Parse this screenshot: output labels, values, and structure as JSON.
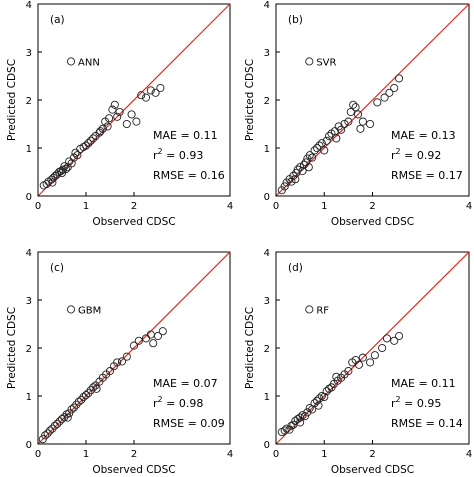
{
  "chart_data": [
    {
      "type": "scatter",
      "panel_label": "(a)",
      "model": "ANN",
      "xlabel": "Observed CDSC",
      "ylabel": "Predicted CDSC",
      "xlim": [
        0,
        4
      ],
      "ylim": [
        0,
        4
      ],
      "xticks": [
        "0",
        "1",
        "2",
        "4"
      ],
      "yticks": [
        "0",
        "1",
        "2",
        "3",
        "4"
      ],
      "reference_line": "1:1",
      "stats": {
        "mae": "MAE = 0.11",
        "r2_prefix": "r",
        "r2_value": " = 0.93",
        "rmse": "RMSE = 0.16"
      },
      "points": [
        [
          0.12,
          0.22
        ],
        [
          0.18,
          0.25
        ],
        [
          0.22,
          0.3
        ],
        [
          0.28,
          0.34
        ],
        [
          0.32,
          0.38
        ],
        [
          0.36,
          0.42
        ],
        [
          0.4,
          0.45
        ],
        [
          0.44,
          0.5
        ],
        [
          0.48,
          0.52
        ],
        [
          0.52,
          0.55
        ],
        [
          0.55,
          0.62
        ],
        [
          0.58,
          0.56
        ],
        [
          0.62,
          0.6
        ],
        [
          0.65,
          0.72
        ],
        [
          0.7,
          0.68
        ],
        [
          0.75,
          0.8
        ],
        [
          0.78,
          0.9
        ],
        [
          0.82,
          0.85
        ],
        [
          0.88,
          0.98
        ],
        [
          0.95,
          1.02
        ],
        [
          1.0,
          1.05
        ],
        [
          1.05,
          1.1
        ],
        [
          1.1,
          1.15
        ],
        [
          1.15,
          1.2
        ],
        [
          1.2,
          1.25
        ],
        [
          1.28,
          1.32
        ],
        [
          1.35,
          1.4
        ],
        [
          1.4,
          1.55
        ],
        [
          1.48,
          1.62
        ],
        [
          1.55,
          1.8
        ],
        [
          1.6,
          1.9
        ],
        [
          1.65,
          1.65
        ],
        [
          1.7,
          1.75
        ],
        [
          1.85,
          1.5
        ],
        [
          2.05,
          1.55
        ],
        [
          2.15,
          2.1
        ],
        [
          2.25,
          2.05
        ],
        [
          2.35,
          2.2
        ],
        [
          2.45,
          2.15
        ],
        [
          2.55,
          2.25
        ],
        [
          0.3,
          0.28
        ],
        [
          0.5,
          0.48
        ],
        [
          1.3,
          1.35
        ],
        [
          1.45,
          1.45
        ],
        [
          1.95,
          1.7
        ]
      ]
    },
    {
      "type": "scatter",
      "panel_label": "(b)",
      "model": "SVR",
      "xlabel": "Observed CDSC",
      "ylabel": "Predicted CDSC",
      "xlim": [
        0,
        4
      ],
      "ylim": [
        0,
        4
      ],
      "xticks": [
        "0",
        "1",
        "2",
        "4"
      ],
      "yticks": [
        "0",
        "1",
        "2",
        "3",
        "4"
      ],
      "reference_line": "1:1",
      "stats": {
        "mae": "MAE = 0.13",
        "r2_prefix": "r",
        "r2_value": " = 0.92",
        "rmse": "RMSE = 0.17"
      },
      "points": [
        [
          0.12,
          0.12
        ],
        [
          0.18,
          0.2
        ],
        [
          0.22,
          0.28
        ],
        [
          0.28,
          0.35
        ],
        [
          0.32,
          0.3
        ],
        [
          0.36,
          0.42
        ],
        [
          0.42,
          0.48
        ],
        [
          0.45,
          0.55
        ],
        [
          0.5,
          0.6
        ],
        [
          0.55,
          0.52
        ],
        [
          0.58,
          0.65
        ],
        [
          0.62,
          0.7
        ],
        [
          0.65,
          0.78
        ],
        [
          0.7,
          0.85
        ],
        [
          0.75,
          0.8
        ],
        [
          0.8,
          0.95
        ],
        [
          0.85,
          1.0
        ],
        [
          0.9,
          1.05
        ],
        [
          0.95,
          1.1
        ],
        [
          1.0,
          0.95
        ],
        [
          1.05,
          1.15
        ],
        [
          1.1,
          1.25
        ],
        [
          1.15,
          1.3
        ],
        [
          1.22,
          1.35
        ],
        [
          1.3,
          1.45
        ],
        [
          1.35,
          1.38
        ],
        [
          1.42,
          1.5
        ],
        [
          1.5,
          1.55
        ],
        [
          1.55,
          1.75
        ],
        [
          1.6,
          1.9
        ],
        [
          1.65,
          1.85
        ],
        [
          1.7,
          1.7
        ],
        [
          1.8,
          1.55
        ],
        [
          1.95,
          1.5
        ],
        [
          2.1,
          1.95
        ],
        [
          2.25,
          2.05
        ],
        [
          2.35,
          2.15
        ],
        [
          2.45,
          2.25
        ],
        [
          2.55,
          2.45
        ],
        [
          0.4,
          0.35
        ],
        [
          0.68,
          0.6
        ],
        [
          1.25,
          1.2
        ],
        [
          1.75,
          1.4
        ]
      ]
    },
    {
      "type": "scatter",
      "panel_label": "(c)",
      "model": "GBM",
      "xlabel": "Observed CDSC",
      "ylabel": "Predicted CDSC",
      "xlim": [
        0,
        4
      ],
      "ylim": [
        0,
        4
      ],
      "xticks": [
        "0",
        "1",
        "2",
        "4"
      ],
      "yticks": [
        "0",
        "1",
        "2",
        "3",
        "4"
      ],
      "reference_line": "1:1",
      "stats": {
        "mae": "MAE = 0.07",
        "r2_prefix": "r",
        "r2_value": " = 0.98",
        "rmse": "RMSE = 0.09"
      },
      "points": [
        [
          0.1,
          0.1
        ],
        [
          0.15,
          0.18
        ],
        [
          0.2,
          0.22
        ],
        [
          0.25,
          0.28
        ],
        [
          0.3,
          0.32
        ],
        [
          0.35,
          0.38
        ],
        [
          0.4,
          0.42
        ],
        [
          0.45,
          0.47
        ],
        [
          0.5,
          0.52
        ],
        [
          0.55,
          0.56
        ],
        [
          0.6,
          0.62
        ],
        [
          0.65,
          0.64
        ],
        [
          0.7,
          0.72
        ],
        [
          0.75,
          0.76
        ],
        [
          0.8,
          0.82
        ],
        [
          0.85,
          0.88
        ],
        [
          0.9,
          0.92
        ],
        [
          0.95,
          0.98
        ],
        [
          1.0,
          1.02
        ],
        [
          1.05,
          1.06
        ],
        [
          1.1,
          1.12
        ],
        [
          1.15,
          1.18
        ],
        [
          1.2,
          1.22
        ],
        [
          1.28,
          1.3
        ],
        [
          1.35,
          1.38
        ],
        [
          1.42,
          1.45
        ],
        [
          1.5,
          1.52
        ],
        [
          1.58,
          1.62
        ],
        [
          1.65,
          1.7
        ],
        [
          1.75,
          1.72
        ],
        [
          1.85,
          1.82
        ],
        [
          2.0,
          2.05
        ],
        [
          2.1,
          2.15
        ],
        [
          2.25,
          2.2
        ],
        [
          2.35,
          2.28
        ],
        [
          2.5,
          2.25
        ],
        [
          2.6,
          2.35
        ],
        [
          2.4,
          2.1
        ],
        [
          0.62,
          0.55
        ],
        [
          1.22,
          1.15
        ]
      ]
    },
    {
      "type": "scatter",
      "panel_label": "(d)",
      "model": "RF",
      "xlabel": "Observed CDSC",
      "ylabel": "Predicted CDSC",
      "xlim": [
        0,
        4
      ],
      "ylim": [
        0,
        4
      ],
      "xticks": [
        "0",
        "1",
        "2",
        "4"
      ],
      "yticks": [
        "0",
        "1",
        "2",
        "3",
        "4"
      ],
      "reference_line": "1:1",
      "stats": {
        "mae": "MAE = 0.11",
        "r2_prefix": "r",
        "r2_value": " = 0.95",
        "rmse": "RMSE = 0.14"
      },
      "points": [
        [
          0.12,
          0.25
        ],
        [
          0.18,
          0.28
        ],
        [
          0.22,
          0.32
        ],
        [
          0.28,
          0.3
        ],
        [
          0.32,
          0.38
        ],
        [
          0.36,
          0.4
        ],
        [
          0.4,
          0.48
        ],
        [
          0.45,
          0.52
        ],
        [
          0.5,
          0.55
        ],
        [
          0.55,
          0.6
        ],
        [
          0.6,
          0.58
        ],
        [
          0.65,
          0.66
        ],
        [
          0.7,
          0.75
        ],
        [
          0.75,
          0.72
        ],
        [
          0.8,
          0.85
        ],
        [
          0.85,
          0.9
        ],
        [
          0.9,
          0.95
        ],
        [
          0.95,
          1.0
        ],
        [
          1.0,
          0.98
        ],
        [
          1.05,
          1.1
        ],
        [
          1.1,
          1.15
        ],
        [
          1.15,
          1.18
        ],
        [
          1.2,
          1.25
        ],
        [
          1.28,
          1.32
        ],
        [
          1.35,
          1.38
        ],
        [
          1.42,
          1.45
        ],
        [
          1.5,
          1.52
        ],
        [
          1.58,
          1.7
        ],
        [
          1.65,
          1.75
        ],
        [
          1.72,
          1.65
        ],
        [
          1.8,
          1.8
        ],
        [
          1.95,
          1.7
        ],
        [
          2.05,
          1.85
        ],
        [
          2.2,
          2.0
        ],
        [
          2.3,
          2.2
        ],
        [
          2.45,
          2.15
        ],
        [
          2.55,
          2.25
        ],
        [
          0.5,
          0.45
        ],
        [
          0.88,
          0.8
        ],
        [
          1.25,
          1.4
        ]
      ]
    }
  ],
  "colors": {
    "reference_line": "#e8261c",
    "marker_stroke": "#222222",
    "axis": "#000000"
  }
}
